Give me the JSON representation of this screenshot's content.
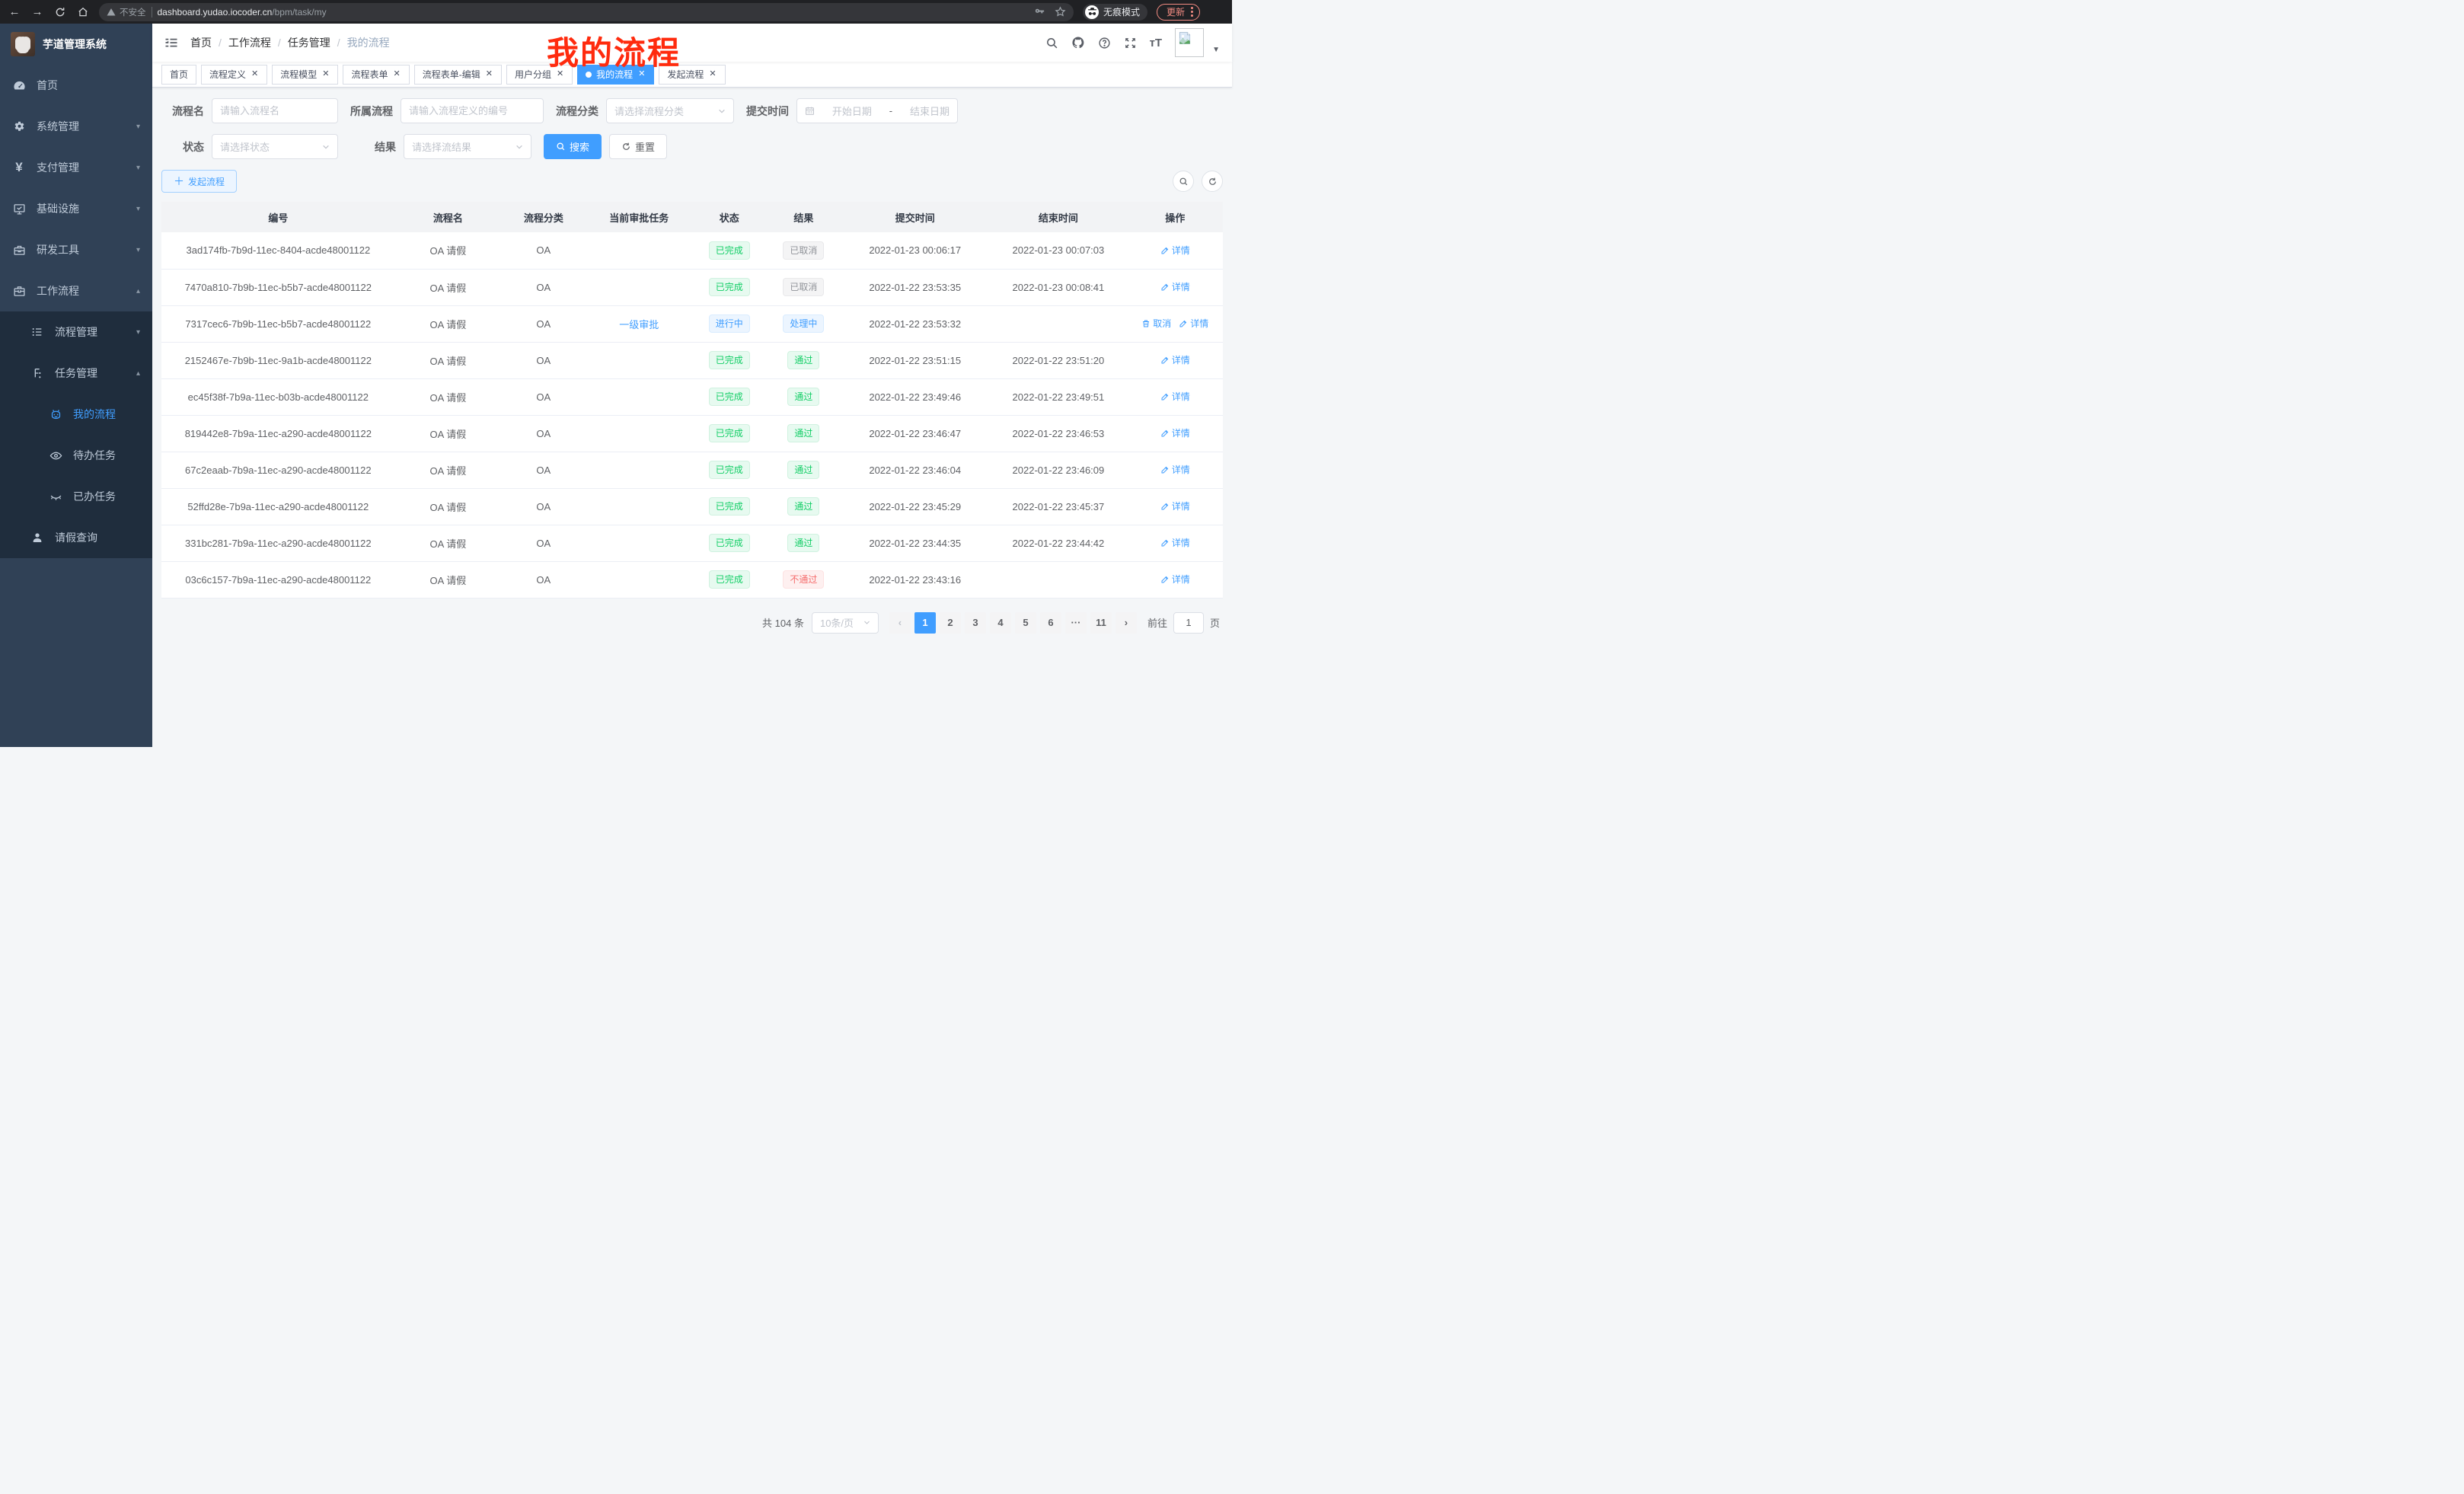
{
  "colors": {
    "accent": "#409eff",
    "success": "#13ce66",
    "danger": "#f56c6c",
    "info": "#909399",
    "annotation": "#ff2b0e",
    "sidebar_bg": "#304156",
    "submenu_bg": "#1f2d3d"
  },
  "browser": {
    "security_label": "不安全",
    "url_host": "dashboard.yudao.iocoder.cn",
    "url_path": "/bpm/task/my",
    "incognito_label": "无痕模式",
    "update_label": "更新"
  },
  "sidebar": {
    "title": "芋道管理系统",
    "items": [
      {
        "label": "首页",
        "icon": "dashboard-icon"
      },
      {
        "label": "系统管理",
        "icon": "gear-icon"
      },
      {
        "label": "支付管理",
        "icon": "yen-icon"
      },
      {
        "label": "基础设施",
        "icon": "monitor-icon"
      },
      {
        "label": "研发工具",
        "icon": "toolbox-icon"
      },
      {
        "label": "工作流程",
        "icon": "briefcase-icon"
      },
      {
        "label": "流程管理",
        "icon": "list-tree-icon"
      },
      {
        "label": "任务管理",
        "icon": "share-node-icon"
      },
      {
        "label": "我的流程",
        "icon": "robot-icon"
      },
      {
        "label": "待办任务",
        "icon": "eye-icon"
      },
      {
        "label": "已办任务",
        "icon": "eye-closed-icon"
      },
      {
        "label": "请假查询",
        "icon": "user-icon"
      }
    ]
  },
  "navbar": {
    "breadcrumb": [
      "首页",
      "工作流程",
      "任务管理",
      "我的流程"
    ],
    "icons": [
      "search-icon",
      "github-icon",
      "help-icon",
      "fullscreen-icon",
      "font-size-icon",
      "avatar-broken-image",
      "caret-down-icon"
    ]
  },
  "annotation": {
    "text": "我的流程"
  },
  "tags": {
    "items": [
      {
        "label": "首页",
        "closable": false,
        "active": false
      },
      {
        "label": "流程定义",
        "closable": true,
        "active": false
      },
      {
        "label": "流程模型",
        "closable": true,
        "active": false
      },
      {
        "label": "流程表单",
        "closable": true,
        "active": false
      },
      {
        "label": "流程表单-编辑",
        "closable": true,
        "active": false
      },
      {
        "label": "用户分组",
        "closable": true,
        "active": false
      },
      {
        "label": "我的流程",
        "closable": true,
        "active": true
      },
      {
        "label": "发起流程",
        "closable": true,
        "active": false
      }
    ]
  },
  "filters": {
    "process_name": {
      "label": "流程名",
      "placeholder": "请输入流程名"
    },
    "process_def": {
      "label": "所属流程",
      "placeholder": "请输入流程定义的编号"
    },
    "category": {
      "label": "流程分类",
      "placeholder": "请选择流程分类"
    },
    "submit_time": {
      "label": "提交时间",
      "start_placeholder": "开始日期",
      "separator": "-",
      "end_placeholder": "结束日期"
    },
    "status": {
      "label": "状态",
      "placeholder": "请选择状态"
    },
    "result": {
      "label": "结果",
      "placeholder": "请选择流结果"
    },
    "search_label": "搜索",
    "reset_label": "重置"
  },
  "toolbar": {
    "create_label": "发起流程"
  },
  "table": {
    "columns": [
      "编号",
      "流程名",
      "流程分类",
      "当前审批任务",
      "状态",
      "结果",
      "提交时间",
      "结束时间",
      "操作"
    ],
    "rows": [
      {
        "id": "3ad174fb-7b9d-11ec-8404-acde48001122",
        "name": "OA 请假",
        "category": "OA",
        "current_task": "",
        "status": {
          "label": "已完成",
          "type": "success"
        },
        "result": {
          "label": "已取消",
          "type": "info"
        },
        "submit_time": "2022-01-23 00:06:17",
        "end_time": "2022-01-23 00:07:03",
        "actions": [
          {
            "label": "详情",
            "icon": "edit-icon"
          }
        ]
      },
      {
        "id": "7470a810-7b9b-11ec-b5b7-acde48001122",
        "name": "OA 请假",
        "category": "OA",
        "current_task": "",
        "status": {
          "label": "已完成",
          "type": "success"
        },
        "result": {
          "label": "已取消",
          "type": "info"
        },
        "submit_time": "2022-01-22 23:53:35",
        "end_time": "2022-01-23 00:08:41",
        "actions": [
          {
            "label": "详情",
            "icon": "edit-icon"
          }
        ]
      },
      {
        "id": "7317cec6-7b9b-11ec-b5b7-acde48001122",
        "name": "OA 请假",
        "category": "OA",
        "current_task": "一级审批",
        "status": {
          "label": "进行中",
          "type": "primary"
        },
        "result": {
          "label": "处理中",
          "type": "primary"
        },
        "submit_time": "2022-01-22 23:53:32",
        "end_time": "",
        "actions": [
          {
            "label": "取消",
            "icon": "delete-icon"
          },
          {
            "label": "详情",
            "icon": "edit-icon"
          }
        ]
      },
      {
        "id": "2152467e-7b9b-11ec-9a1b-acde48001122",
        "name": "OA 请假",
        "category": "OA",
        "current_task": "",
        "status": {
          "label": "已完成",
          "type": "success"
        },
        "result": {
          "label": "通过",
          "type": "success"
        },
        "submit_time": "2022-01-22 23:51:15",
        "end_time": "2022-01-22 23:51:20",
        "actions": [
          {
            "label": "详情",
            "icon": "edit-icon"
          }
        ]
      },
      {
        "id": "ec45f38f-7b9a-11ec-b03b-acde48001122",
        "name": "OA 请假",
        "category": "OA",
        "current_task": "",
        "status": {
          "label": "已完成",
          "type": "success"
        },
        "result": {
          "label": "通过",
          "type": "success"
        },
        "submit_time": "2022-01-22 23:49:46",
        "end_time": "2022-01-22 23:49:51",
        "actions": [
          {
            "label": "详情",
            "icon": "edit-icon"
          }
        ]
      },
      {
        "id": "819442e8-7b9a-11ec-a290-acde48001122",
        "name": "OA 请假",
        "category": "OA",
        "current_task": "",
        "status": {
          "label": "已完成",
          "type": "success"
        },
        "result": {
          "label": "通过",
          "type": "success"
        },
        "submit_time": "2022-01-22 23:46:47",
        "end_time": "2022-01-22 23:46:53",
        "actions": [
          {
            "label": "详情",
            "icon": "edit-icon"
          }
        ]
      },
      {
        "id": "67c2eaab-7b9a-11ec-a290-acde48001122",
        "name": "OA 请假",
        "category": "OA",
        "current_task": "",
        "status": {
          "label": "已完成",
          "type": "success"
        },
        "result": {
          "label": "通过",
          "type": "success"
        },
        "submit_time": "2022-01-22 23:46:04",
        "end_time": "2022-01-22 23:46:09",
        "actions": [
          {
            "label": "详情",
            "icon": "edit-icon"
          }
        ]
      },
      {
        "id": "52ffd28e-7b9a-11ec-a290-acde48001122",
        "name": "OA 请假",
        "category": "OA",
        "current_task": "",
        "status": {
          "label": "已完成",
          "type": "success"
        },
        "result": {
          "label": "通过",
          "type": "success"
        },
        "submit_time": "2022-01-22 23:45:29",
        "end_time": "2022-01-22 23:45:37",
        "actions": [
          {
            "label": "详情",
            "icon": "edit-icon"
          }
        ]
      },
      {
        "id": "331bc281-7b9a-11ec-a290-acde48001122",
        "name": "OA 请假",
        "category": "OA",
        "current_task": "",
        "status": {
          "label": "已完成",
          "type": "success"
        },
        "result": {
          "label": "通过",
          "type": "success"
        },
        "submit_time": "2022-01-22 23:44:35",
        "end_time": "2022-01-22 23:44:42",
        "actions": [
          {
            "label": "详情",
            "icon": "edit-icon"
          }
        ]
      },
      {
        "id": "03c6c157-7b9a-11ec-a290-acde48001122",
        "name": "OA 请假",
        "category": "OA",
        "current_task": "",
        "status": {
          "label": "已完成",
          "type": "success"
        },
        "result": {
          "label": "不通过",
          "type": "danger"
        },
        "submit_time": "2022-01-22 23:43:16",
        "end_time": "",
        "actions": [
          {
            "label": "详情",
            "icon": "edit-icon"
          }
        ]
      }
    ]
  },
  "pagination": {
    "total_label": "共 104 条",
    "page_size_label": "10条/页",
    "pages": [
      "1",
      "2",
      "3",
      "4",
      "5",
      "6",
      "···",
      "11"
    ],
    "active_page": "1",
    "goto_label": "前往",
    "goto_value": "1",
    "goto_suffix": "页"
  }
}
